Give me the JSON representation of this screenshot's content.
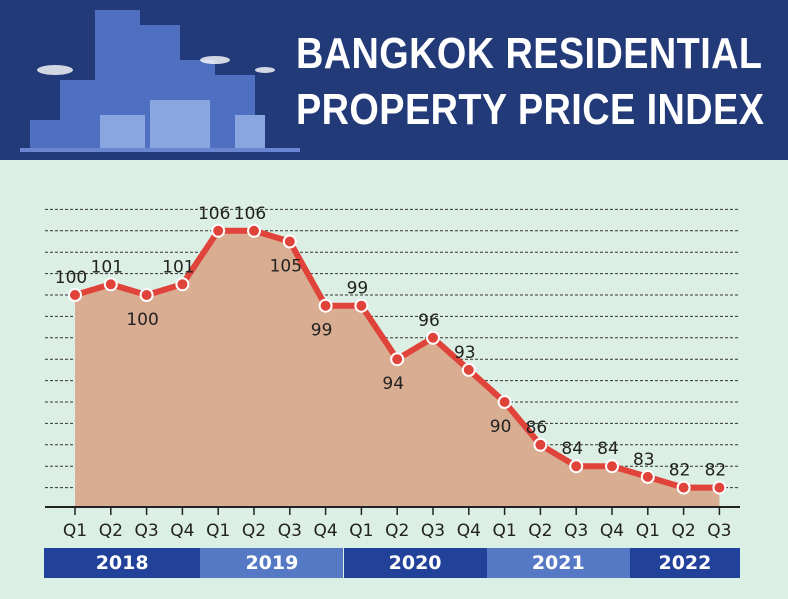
{
  "title_lines": [
    "BANGKOK RESIDENTIAL",
    "PROPERTY PRICE INDEX"
  ],
  "chart_data": {
    "type": "area",
    "title": "BANGKOK RESIDENTIAL PROPERTY PRICE INDEX",
    "categories": [
      "Q1",
      "Q2",
      "Q3",
      "Q4",
      "Q1",
      "Q2",
      "Q3",
      "Q4",
      "Q1",
      "Q2",
      "Q3",
      "Q4",
      "Q1",
      "Q2",
      "Q3",
      "Q4",
      "Q1",
      "Q2",
      "Q3"
    ],
    "years": [
      {
        "label": "2018",
        "quarters": 4,
        "color": "#22429a"
      },
      {
        "label": "2019",
        "quarters": 4,
        "color": "#5579c4"
      },
      {
        "label": "2020",
        "quarters": 4,
        "color": "#22429a"
      },
      {
        "label": "2021",
        "quarters": 4,
        "color": "#5579c4"
      },
      {
        "label": "2022",
        "quarters": 3,
        "color": "#22429a"
      }
    ],
    "values": [
      100,
      101,
      100,
      101,
      106,
      106,
      105,
      99,
      99,
      94,
      96,
      93,
      90,
      86,
      84,
      84,
      83,
      82,
      82
    ],
    "label_position": [
      "above",
      "above",
      "below",
      "above",
      "above",
      "above",
      "below",
      "below",
      "above",
      "below",
      "above",
      "above",
      "below",
      "above",
      "above",
      "above",
      "above",
      "above",
      "above"
    ],
    "ylim": [
      80,
      108
    ],
    "grid": true,
    "colors": {
      "line": "#e0433a",
      "fill": "#d9ad92",
      "grid": "#333333"
    }
  }
}
